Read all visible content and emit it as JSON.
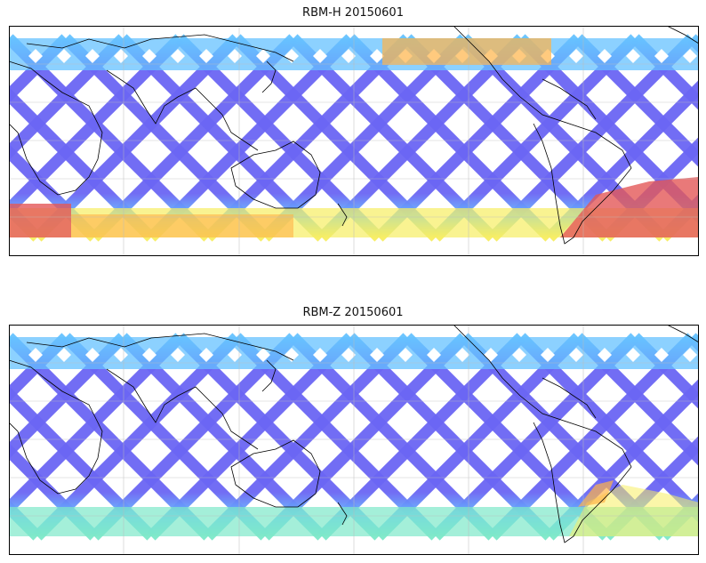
{
  "panels": [
    {
      "title": "RBM-H 20150601",
      "colors": {
        "track": "#6b66f4",
        "lat_high_n": "#66c2ff",
        "lat_high_s": "#f7ee62",
        "hot": "#e45757",
        "warm": "#ffb347"
      }
    },
    {
      "title": "RBM-Z 20150601",
      "colors": {
        "track": "#6b66f4",
        "lat_high_n": "#66c2ff",
        "lat_high_s": "#7de8c9",
        "hot": "#ffb347",
        "warm": "#f7ee62"
      }
    }
  ],
  "map": {
    "gridlines": true,
    "coastline_color": "#000000",
    "frame_color": "#000000"
  }
}
